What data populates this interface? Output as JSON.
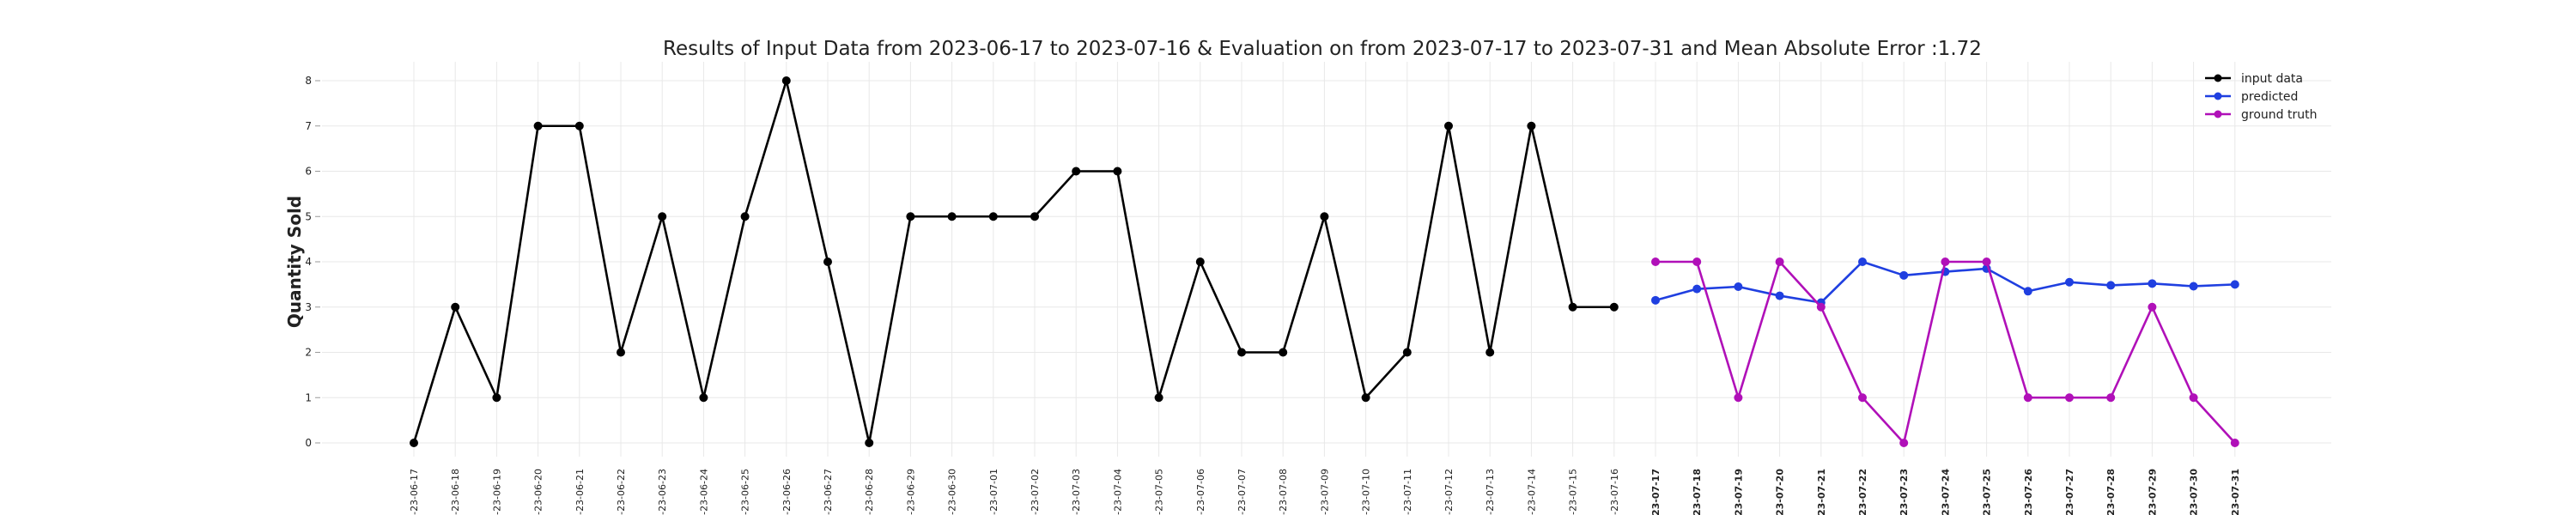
{
  "chart_data": {
    "type": "line",
    "title": "Results of Input Data from 2023-06-17 to 2023-07-16 & Evaluation on from 2023-07-17 to 2023-07-31 and Mean Absolute Error  :1.72",
    "xlabel": "",
    "ylabel": "Quantity Sold",
    "ylim": [
      0,
      8
    ],
    "yticks": [
      "0",
      "1",
      "2",
      "3",
      "4",
      "5",
      "6",
      "7",
      "8"
    ],
    "grid": true,
    "legend_position": "top-right",
    "categories": [
      "2023-06-17",
      "2023-06-18",
      "2023-06-19",
      "2023-06-20",
      "2023-06-21",
      "2023-06-22",
      "2023-06-23",
      "2023-06-24",
      "2023-06-25",
      "2023-06-26",
      "2023-06-27",
      "2023-06-28",
      "2023-06-29",
      "2023-06-30",
      "2023-07-01",
      "2023-07-02",
      "2023-07-03",
      "2023-07-04",
      "2023-07-05",
      "2023-07-06",
      "2023-07-07",
      "2023-07-08",
      "2023-07-09",
      "2023-07-10",
      "2023-07-11",
      "2023-07-12",
      "2023-07-13",
      "2023-07-14",
      "2023-07-15",
      "2023-07-16",
      "2023-07-17",
      "2023-07-18",
      "2023-07-19",
      "2023-07-20",
      "2023-07-21",
      "2023-07-22",
      "2023-07-23",
      "2023-07-24",
      "2023-07-25",
      "2023-07-26",
      "2023-07-27",
      "2023-07-28",
      "2023-07-29",
      "2023-07-30",
      "2023-07-31"
    ],
    "tick_labels": [
      "-23-06-17",
      "-23-06-18",
      "-23-06-19",
      "-23-06-20",
      "-23-06-21",
      "-23-06-22",
      "-23-06-23",
      "-23-06-24",
      "-23-06-25",
      "-23-06-26",
      "-23-06-27",
      "-23-06-28",
      "-23-06-29",
      "-23-06-30",
      "-23-07-01",
      "-23-07-02",
      "-23-07-03",
      "-23-07-04",
      "-23-07-05",
      "-23-07-06",
      "-23-07-07",
      "-23-07-08",
      "-23-07-09",
      "-23-07-10",
      "-23-07-11",
      "-23-07-12",
      "-23-07-13",
      "-23-07-14",
      "-23-07-15",
      "-23-07-16",
      "-23-07-17",
      "-23-07-18",
      "-23-07-19",
      "-23-07-20",
      "-23-07-21",
      "-23-07-22",
      "-23-07-23",
      "-23-07-24",
      "-23-07-25",
      "-23-07-26",
      "-23-07-27",
      "-23-07-28",
      "-23-07-29",
      "-23-07-30",
      "-23-07-31"
    ],
    "bold_tick_from": "2023-07-17",
    "series": [
      {
        "name": "input data",
        "color": "#000000",
        "x": [
          "2023-06-17",
          "2023-06-18",
          "2023-06-19",
          "2023-06-20",
          "2023-06-21",
          "2023-06-22",
          "2023-06-23",
          "2023-06-24",
          "2023-06-25",
          "2023-06-26",
          "2023-06-27",
          "2023-06-28",
          "2023-06-29",
          "2023-06-30",
          "2023-07-01",
          "2023-07-02",
          "2023-07-03",
          "2023-07-04",
          "2023-07-05",
          "2023-07-06",
          "2023-07-07",
          "2023-07-08",
          "2023-07-09",
          "2023-07-10",
          "2023-07-11",
          "2023-07-12",
          "2023-07-13",
          "2023-07-14",
          "2023-07-15",
          "2023-07-16"
        ],
        "values": [
          0,
          3,
          1,
          7,
          7,
          2,
          5,
          1,
          5,
          8,
          4,
          0,
          5,
          5,
          5,
          5,
          6,
          6,
          1,
          4,
          2,
          2,
          5,
          1,
          2,
          7,
          2,
          7,
          3,
          3
        ]
      },
      {
        "name": "predicted",
        "color": "#1f3fe0",
        "x": [
          "2023-07-17",
          "2023-07-18",
          "2023-07-19",
          "2023-07-20",
          "2023-07-21",
          "2023-07-22",
          "2023-07-23",
          "2023-07-24",
          "2023-07-25",
          "2023-07-26",
          "2023-07-27",
          "2023-07-28",
          "2023-07-29",
          "2023-07-30",
          "2023-07-31"
        ],
        "values": [
          3.15,
          3.4,
          3.45,
          3.25,
          3.1,
          4.0,
          3.7,
          3.78,
          3.85,
          3.35,
          3.55,
          3.48,
          3.52,
          3.46,
          3.5
        ]
      },
      {
        "name": "ground truth",
        "color": "#b010b8",
        "x": [
          "2023-07-17",
          "2023-07-18",
          "2023-07-19",
          "2023-07-20",
          "2023-07-21",
          "2023-07-22",
          "2023-07-23",
          "2023-07-24",
          "2023-07-25",
          "2023-07-26",
          "2023-07-27",
          "2023-07-28",
          "2023-07-29",
          "2023-07-30",
          "2023-07-31"
        ],
        "values": [
          4,
          4,
          1,
          4,
          3,
          1,
          0,
          4,
          4,
          1,
          1,
          1,
          3,
          1,
          0
        ]
      }
    ]
  }
}
